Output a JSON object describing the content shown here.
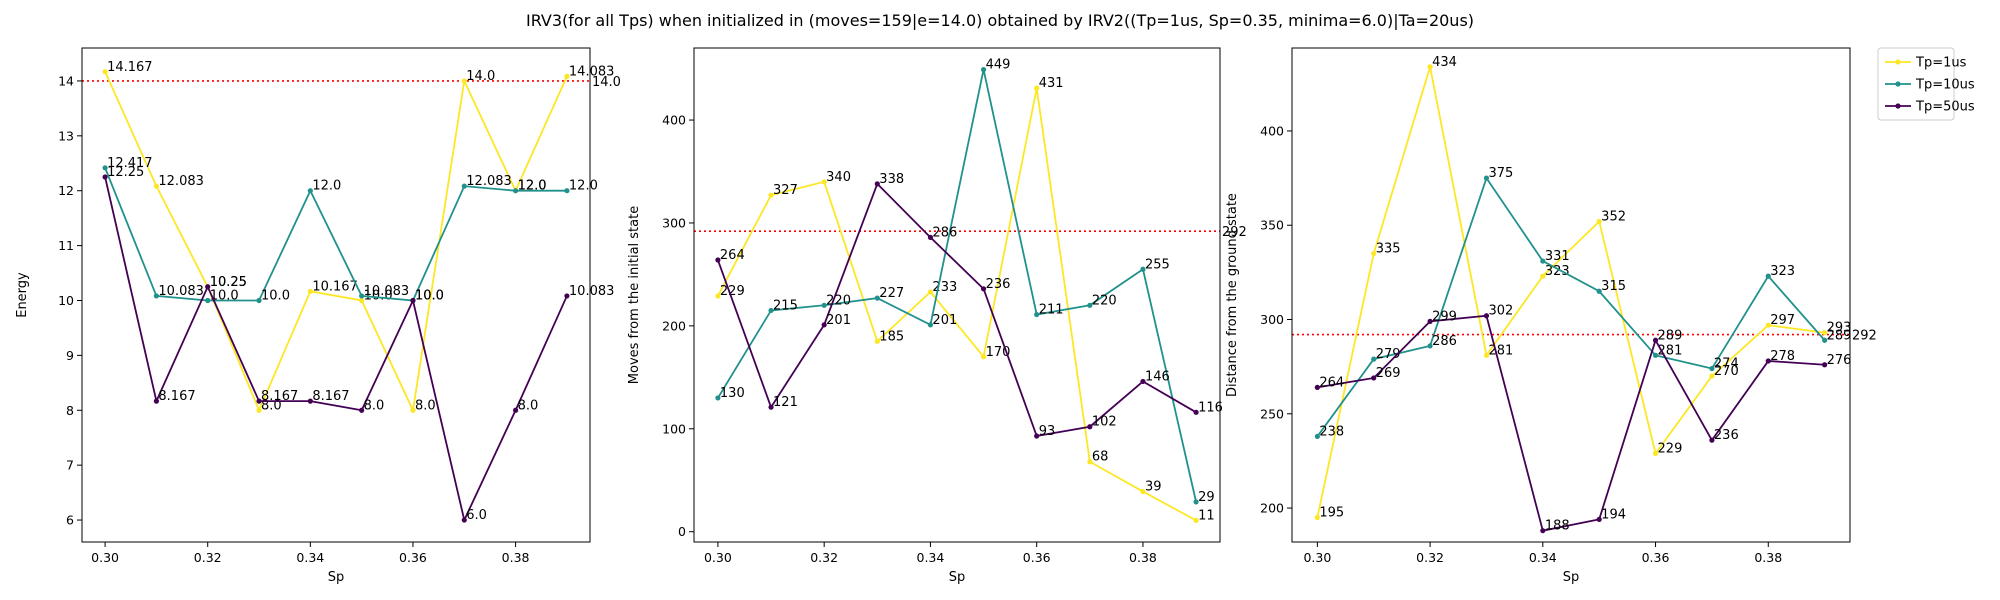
{
  "chart_data": [
    {
      "type": "line",
      "title": "IRV3(for all Tps) when initialized in (moves=159|e=14.0) obtained by IRV2((Tp=1us, Sp=0.35, minima=6.0)|Ta=20us)",
      "panels": [
        {
          "xlabel": "Sp",
          "ylabel": "Energy",
          "xlim": [
            0.2955,
            0.3945
          ],
          "ylim": [
            5.6,
            14.6
          ],
          "yticks": [
            6,
            7,
            8,
            9,
            10,
            11,
            12,
            13,
            14
          ],
          "hline": {
            "value": 14.0,
            "color": "#ff0000",
            "label": "14.0"
          },
          "series": [
            {
              "name": "Tp=1us",
              "color": "#fde725",
              "values": [
                14.167,
                12.083,
                10.25,
                8.0,
                10.167,
                10.0,
                8.0,
                14.0,
                12.0,
                14.083
              ],
              "labels": [
                "14.167",
                "12.083",
                "10.25",
                "8.0",
                "10.167",
                "10.0",
                "8.0",
                "14.0",
                "12.0",
                "14.083"
              ]
            },
            {
              "name": "Tp=10us",
              "color": "#21918c",
              "values": [
                12.417,
                10.083,
                10.0,
                10.0,
                12.0,
                10.083,
                10.0,
                12.083,
                12.0,
                12.0
              ],
              "labels": [
                "12.417",
                "10.083",
                "10.0",
                "10.0",
                "12.0",
                "10.083",
                "10.0",
                "12.083",
                "12.0",
                "12.0"
              ]
            },
            {
              "name": "Tp=50us",
              "color": "#440154",
              "values": [
                12.25,
                8.167,
                10.25,
                8.167,
                8.167,
                8.0,
                10.0,
                6.0,
                8.0,
                10.083
              ],
              "labels": [
                "12.25",
                "8.167",
                "10.25",
                "8.167",
                "8.167",
                "8.0",
                "10.0",
                "6.0",
                "8.0",
                "10.083"
              ]
            }
          ]
        },
        {
          "xlabel": "Sp",
          "ylabel": "Moves from the initial state",
          "xlim": [
            0.2955,
            0.3945
          ],
          "ylim": [
            -10,
            470
          ],
          "yticks": [
            0,
            100,
            200,
            300,
            400
          ],
          "hline": {
            "value": 292,
            "color": "#ff0000",
            "label": "292"
          },
          "series": [
            {
              "name": "Tp=1us",
              "color": "#fde725",
              "values": [
                229,
                327,
                340,
                185,
                233,
                170,
                431,
                68,
                39,
                11
              ],
              "labels": [
                "229",
                "327",
                "340",
                "185",
                "233",
                "170",
                "431",
                "68",
                "39",
                "11"
              ]
            },
            {
              "name": "Tp=10us",
              "color": "#21918c",
              "values": [
                130,
                215,
                220,
                227,
                201,
                449,
                211,
                220,
                255,
                29
              ],
              "labels": [
                "130",
                "215",
                "220",
                "227",
                "201",
                "449",
                "211",
                "220",
                "255",
                "29"
              ]
            },
            {
              "name": "Tp=50us",
              "color": "#440154",
              "values": [
                264,
                121,
                201,
                338,
                286,
                236,
                93,
                102,
                146,
                116
              ],
              "labels": [
                "264",
                "121",
                "201",
                "338",
                "286",
                "236",
                "93",
                "102",
                "146",
                "116"
              ]
            }
          ]
        },
        {
          "xlabel": "Sp",
          "ylabel": "Distance from the ground state",
          "xlim": [
            0.2955,
            0.3945
          ],
          "ylim": [
            182,
            444
          ],
          "yticks": [
            200,
            250,
            300,
            350,
            400
          ],
          "hline": {
            "value": 292,
            "color": "#ff0000",
            "label": "292"
          },
          "series": [
            {
              "name": "Tp=1us",
              "color": "#fde725",
              "values": [
                195,
                335,
                434,
                281,
                323,
                352,
                229,
                270,
                297,
                293
              ],
              "labels": [
                "195",
                "335",
                "434",
                "281",
                "323",
                "352",
                "229",
                "270",
                "297",
                "293"
              ]
            },
            {
              "name": "Tp=10us",
              "color": "#21918c",
              "values": [
                238,
                279,
                286,
                375,
                331,
                315,
                281,
                274,
                323,
                289
              ],
              "labels": [
                "238",
                "279",
                "286",
                "375",
                "331",
                "315",
                "281",
                "274",
                "323",
                "289"
              ]
            },
            {
              "name": "Tp=50us",
              "color": "#440154",
              "values": [
                264,
                269,
                299,
                302,
                188,
                194,
                289,
                236,
                278,
                276
              ],
              "labels": [
                "264",
                "269",
                "299",
                "302",
                "188",
                "194",
                "289",
                "236",
                "278",
                "276"
              ]
            }
          ]
        }
      ],
      "x": [
        0.3,
        0.31,
        0.32,
        0.33,
        0.34,
        0.35,
        0.36,
        0.37,
        0.38,
        0.39
      ],
      "xticks": [
        0.3,
        0.32,
        0.34,
        0.36,
        0.38
      ],
      "xtick_labels": [
        "0.30",
        "0.32",
        "0.34",
        "0.36",
        "0.38"
      ],
      "legend": {
        "placement": "top-right, outside plot",
        "entries": [
          "Tp=1us",
          "Tp=10us",
          "Tp=50us"
        ]
      },
      "grid": false
    }
  ]
}
